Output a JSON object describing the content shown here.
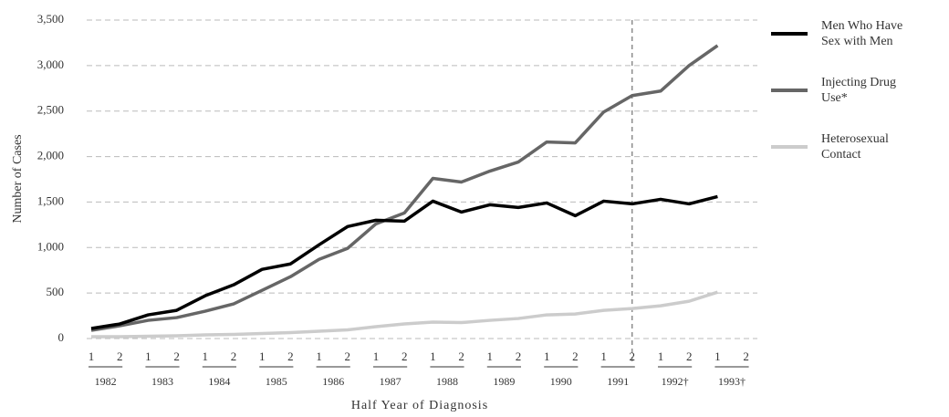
{
  "chart_data": {
    "type": "line",
    "x_label": "Half Year of Diagnosis",
    "y_label": "Number of Cases",
    "categories": [
      "1",
      "2",
      "1",
      "2",
      "1",
      "2",
      "1",
      "2",
      "1",
      "2",
      "1",
      "2",
      "1",
      "2",
      "1",
      "2",
      "1",
      "2",
      "1",
      "2",
      "1",
      "2",
      "1",
      "2"
    ],
    "years": [
      "1982",
      "1983",
      "1984",
      "1985",
      "1986",
      "1987",
      "1988",
      "1989",
      "1990",
      "1991",
      "1992†",
      "1993†"
    ],
    "series": [
      {
        "name": "Men Who Have Sex with Men",
        "color": "#000000",
        "width": 3.5,
        "values": [
          110,
          160,
          260,
          310,
          470,
          590,
          760,
          820,
          1030,
          1230,
          1300,
          1290,
          1510,
          1390,
          1470,
          1440,
          1490,
          1350,
          1510,
          1480,
          1530,
          1480,
          1560,
          null
        ]
      },
      {
        "name": "Injecting Drug Use*",
        "color": "#666666",
        "width": 3.5,
        "values": [
          90,
          140,
          200,
          230,
          300,
          380,
          530,
          680,
          870,
          990,
          1260,
          1380,
          1760,
          1720,
          1840,
          1940,
          2160,
          2150,
          2490,
          2670,
          2720,
          3000,
          3220,
          null
        ]
      },
      {
        "name": "Heterosexual Contact",
        "color": "#cccccc",
        "width": 3.5,
        "values": [
          20,
          20,
          25,
          30,
          40,
          45,
          55,
          65,
          80,
          95,
          130,
          160,
          180,
          175,
          200,
          220,
          260,
          270,
          310,
          330,
          360,
          410,
          510,
          null
        ]
      }
    ],
    "ylim": [
      0,
      3500
    ],
    "yticks": [
      0,
      500,
      {
        "value": 1000,
        "label": "1,000"
      },
      {
        "value": 1500,
        "label": "1,500"
      },
      {
        "value": 2000,
        "label": "2,000"
      },
      {
        "value": 2500,
        "label": "2,500"
      },
      {
        "value": 3000,
        "label": "3,000"
      },
      {
        "value": 3500,
        "label": "3,500"
      }
    ],
    "grid": true,
    "reference_line": {
      "year": "1991",
      "half": "2"
    },
    "legend": "right"
  }
}
